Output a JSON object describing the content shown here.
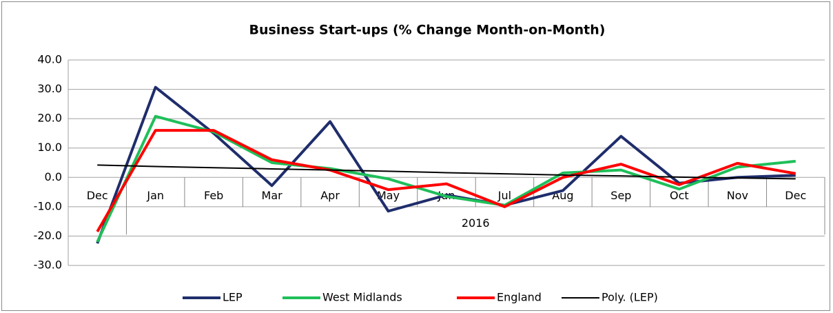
{
  "chart_data": {
    "type": "line",
    "title": "Business Start-ups (% Change Month-on-Month)",
    "categories": [
      "Dec",
      "Jan",
      "Feb",
      "Mar",
      "Apr",
      "May",
      "Jun",
      "Jul",
      "Aug",
      "Sep",
      "Oct",
      "Nov",
      "Dec"
    ],
    "category_group": "2016",
    "series": [
      {
        "name": "LEP",
        "color": "#1f2d6b",
        "values": [
          -22.5,
          30.7,
          15,
          -2.8,
          19,
          -11.5,
          -6,
          -9.5,
          -4.5,
          14,
          -2,
          0,
          0.7
        ]
      },
      {
        "name": "West Midlands",
        "color": "#1fbf5a",
        "values": [
          -22,
          20.8,
          15.5,
          5,
          3,
          -0.5,
          -6.5,
          -9.5,
          1.5,
          2.5,
          -4,
          3.5,
          5.5
        ]
      },
      {
        "name": "England",
        "color": "#ff0000",
        "values": [
          -18.5,
          16,
          16,
          6,
          2.5,
          -4.2,
          -2.2,
          -10,
          0,
          4.5,
          -2.5,
          4.8,
          1.3
        ]
      },
      {
        "name": "Poly. (LEP)",
        "color": "#000000",
        "values": [
          4.2,
          3.7,
          3.3,
          2.9,
          2.5,
          2.1,
          1.6,
          1.2,
          0.8,
          0.5,
          0.1,
          -0.2,
          -0.5
        ]
      }
    ],
    "ylim": [
      -30,
      40
    ],
    "yticks": [
      {
        "value": -30,
        "label": "-30.0"
      },
      {
        "value": -20,
        "label": "-20.0"
      },
      {
        "value": -10,
        "label": "-10.0"
      },
      {
        "value": 0,
        "label": "0.0"
      },
      {
        "value": 10,
        "label": "10.0"
      },
      {
        "value": 20,
        "label": "20.0"
      },
      {
        "value": 30,
        "label": "30.0"
      },
      {
        "value": 40,
        "label": "40.0"
      }
    ],
    "grid": true,
    "legend": "bottom"
  }
}
